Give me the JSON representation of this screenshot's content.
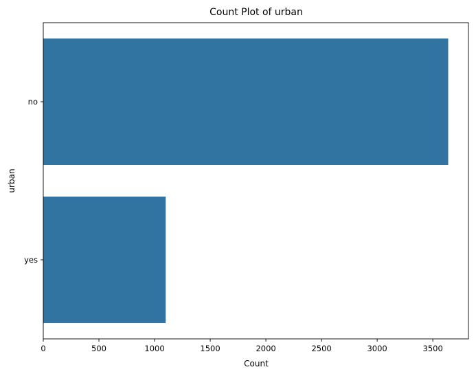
{
  "chart_data": {
    "type": "bar",
    "orientation": "horizontal",
    "title": "Count Plot of urban",
    "xlabel": "Count",
    "ylabel": "urban",
    "categories": [
      "no",
      "yes"
    ],
    "values": [
      3638,
      1100
    ],
    "xlim": [
      0,
      3820
    ],
    "xticks": [
      0,
      500,
      1000,
      1500,
      2000,
      2500,
      3000,
      3500
    ],
    "grid": false,
    "bar_color": "#3274a1"
  }
}
